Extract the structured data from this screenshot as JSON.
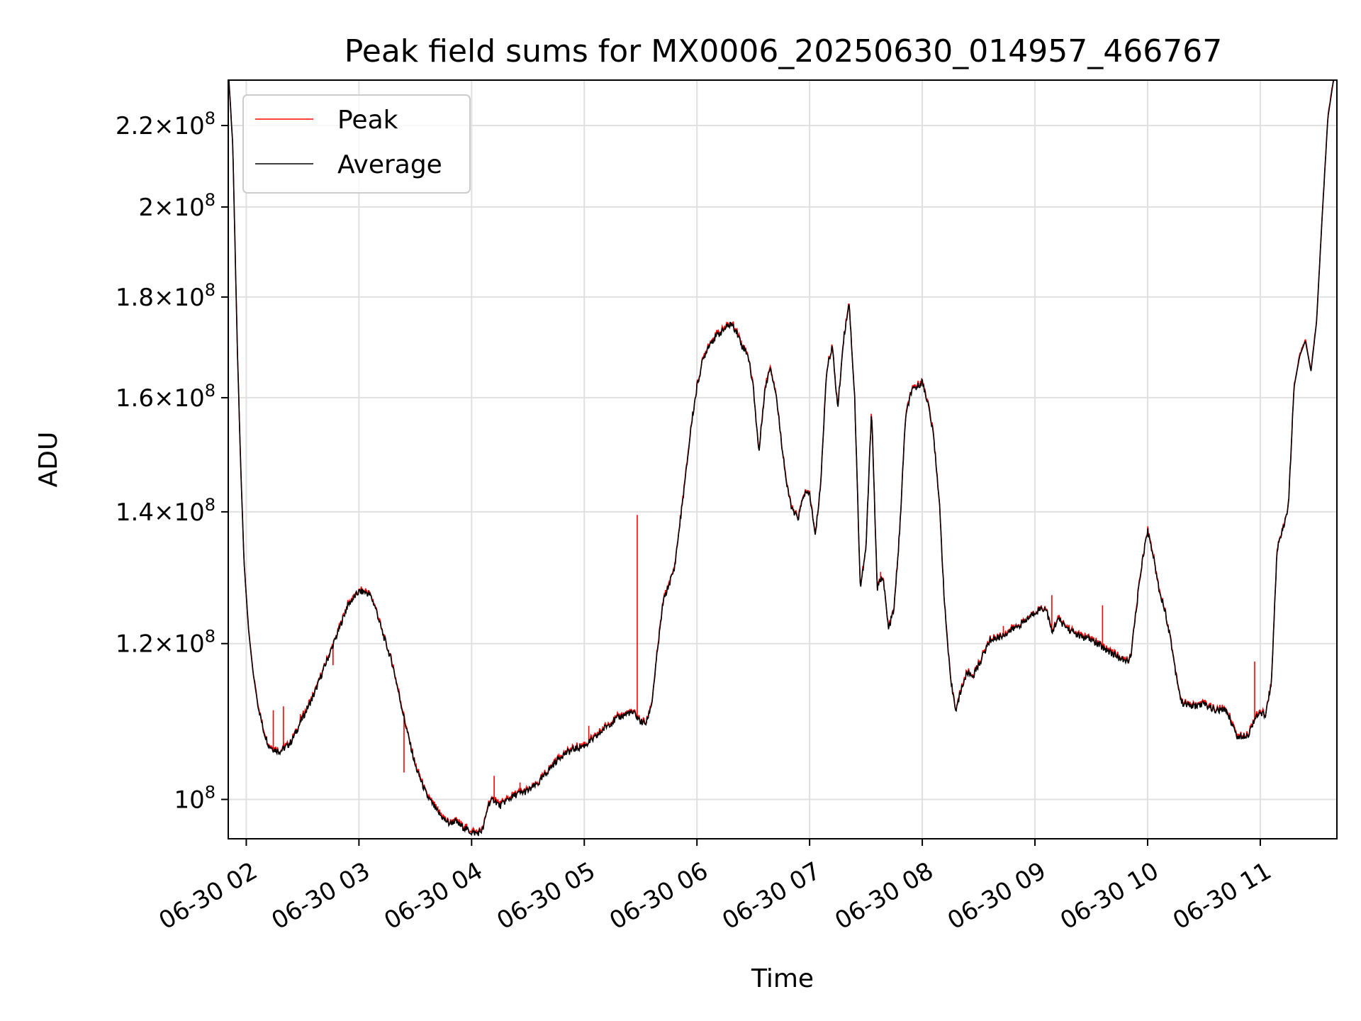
{
  "chart_data": {
    "type": "line",
    "title": "Peak field sums for MX0006_20250630_014957_466767",
    "xlabel": "Time",
    "ylabel": "ADU",
    "x_axis": "time (hours, 2025-06-30)",
    "xlim": [
      1.84,
      11.68
    ],
    "ylim": [
      95500000,
      232000000
    ],
    "yscale": "log",
    "grid": true,
    "legend_position": "upper-left",
    "x_ticks": [
      {
        "value": 2,
        "label": "06-30 02"
      },
      {
        "value": 3,
        "label": "06-30 03"
      },
      {
        "value": 4,
        "label": "06-30 04"
      },
      {
        "value": 5,
        "label": "06-30 05"
      },
      {
        "value": 6,
        "label": "06-30 06"
      },
      {
        "value": 7,
        "label": "06-30 07"
      },
      {
        "value": 8,
        "label": "06-30 08"
      },
      {
        "value": 9,
        "label": "06-30 09"
      },
      {
        "value": 10,
        "label": "06-30 10"
      },
      {
        "value": 11,
        "label": "06-30 11"
      }
    ],
    "y_ticks": [
      {
        "value": 100000000,
        "mantissa": "",
        "exp": "8"
      },
      {
        "value": 120000000,
        "mantissa": "1.2",
        "exp": "8"
      },
      {
        "value": 140000000,
        "mantissa": "1.4",
        "exp": "8"
      },
      {
        "value": 160000000,
        "mantissa": "1.6",
        "exp": "8"
      },
      {
        "value": 180000000,
        "mantissa": "1.8",
        "exp": "8"
      },
      {
        "value": 200000000,
        "mantissa": "2",
        "exp": "8"
      },
      {
        "value": 220000000,
        "mantissa": "2.2",
        "exp": "8"
      }
    ],
    "series": [
      {
        "name": "Peak",
        "color": "#ff0000",
        "spikes": [
          {
            "x": 2.24,
            "y": 111000000
          },
          {
            "x": 2.33,
            "y": 111500000
          },
          {
            "x": 2.48,
            "y": 110500000
          },
          {
            "x": 2.77,
            "y": 117000000
          },
          {
            "x": 3.4,
            "y": 103200000
          },
          {
            "x": 3.7,
            "y": 99200000
          },
          {
            "x": 4.2,
            "y": 102800000
          },
          {
            "x": 4.43,
            "y": 102000000
          },
          {
            "x": 5.04,
            "y": 109000000
          },
          {
            "x": 5.47,
            "y": 139500000
          },
          {
            "x": 7.63,
            "y": 130500000
          },
          {
            "x": 8.72,
            "y": 122500000
          },
          {
            "x": 9.15,
            "y": 127000000
          },
          {
            "x": 9.6,
            "y": 125500000
          },
          {
            "x": 10.95,
            "y": 117500000
          }
        ]
      },
      {
        "name": "Average",
        "color": "#000000",
        "x": [
          1.84,
          1.88,
          1.92,
          1.95,
          1.98,
          2.02,
          2.06,
          2.1,
          2.15,
          2.2,
          2.25,
          2.3,
          2.35,
          2.4,
          2.5,
          2.6,
          2.7,
          2.8,
          2.9,
          3.0,
          3.05,
          3.1,
          3.15,
          3.2,
          3.3,
          3.4,
          3.5,
          3.6,
          3.7,
          3.75,
          3.8,
          3.85,
          3.9,
          4.0,
          4.05,
          4.1,
          4.15,
          4.2,
          4.25,
          4.3,
          4.4,
          4.5,
          4.6,
          4.7,
          4.8,
          4.9,
          5.0,
          5.1,
          5.2,
          5.3,
          5.4,
          5.45,
          5.5,
          5.55,
          5.6,
          5.65,
          5.7,
          5.8,
          5.9,
          5.95,
          6.0,
          6.05,
          6.1,
          6.15,
          6.2,
          6.25,
          6.3,
          6.35,
          6.4,
          6.45,
          6.5,
          6.55,
          6.6,
          6.65,
          6.7,
          6.75,
          6.8,
          6.85,
          6.9,
          6.95,
          7.0,
          7.05,
          7.1,
          7.15,
          7.2,
          7.25,
          7.3,
          7.35,
          7.4,
          7.45,
          7.5,
          7.55,
          7.6,
          7.65,
          7.7,
          7.75,
          7.8,
          7.85,
          7.9,
          7.95,
          8.0,
          8.05,
          8.1,
          8.15,
          8.2,
          8.25,
          8.3,
          8.35,
          8.4,
          8.45,
          8.5,
          8.6,
          8.7,
          8.8,
          8.9,
          9.0,
          9.05,
          9.1,
          9.15,
          9.2,
          9.3,
          9.4,
          9.5,
          9.6,
          9.7,
          9.8,
          9.85,
          9.9,
          9.95,
          10.0,
          10.05,
          10.1,
          10.15,
          10.2,
          10.25,
          10.3,
          10.4,
          10.5,
          10.6,
          10.7,
          10.8,
          10.9,
          10.95,
          11.0,
          11.05,
          11.1,
          11.15,
          11.2,
          11.25,
          11.3,
          11.35,
          11.4,
          11.45,
          11.5,
          11.55,
          11.6,
          11.65
        ],
        "values": [
          235000000,
          215000000,
          170000000,
          148000000,
          132000000,
          122000000,
          116000000,
          112000000,
          108500000,
          106500000,
          106000000,
          105800000,
          106300000,
          107000000,
          110000000,
          113000000,
          117000000,
          121000000,
          125500000,
          127500000,
          127500000,
          127000000,
          125000000,
          122000000,
          117000000,
          110000000,
          104000000,
          100500000,
          98500000,
          97800000,
          97200000,
          97500000,
          97000000,
          96200000,
          96100000,
          96500000,
          99500000,
          100000000,
          99200000,
          99800000,
          100600000,
          101000000,
          102000000,
          103800000,
          105300000,
          106000000,
          106500000,
          107500000,
          109000000,
          110000000,
          110700000,
          110500000,
          109500000,
          109300000,
          112000000,
          119000000,
          126000000,
          131000000,
          146000000,
          155000000,
          162000000,
          167000000,
          170000000,
          171500000,
          172500000,
          173500000,
          174500000,
          173000000,
          170000000,
          168500000,
          162000000,
          150000000,
          161000000,
          166000000,
          161000000,
          152000000,
          144000000,
          140000000,
          139000000,
          143000000,
          143000000,
          136000000,
          145000000,
          165000000,
          170000000,
          158000000,
          171000000,
          179000000,
          160000000,
          128000000,
          134000000,
          158000000,
          128000000,
          130000000,
          122000000,
          125000000,
          137000000,
          156000000,
          161000000,
          162000000,
          163000000,
          159000000,
          153000000,
          142000000,
          125000000,
          115000000,
          111000000,
          114000000,
          116000000,
          115500000,
          117000000,
          120500000,
          121000000,
          122000000,
          123000000,
          124500000,
          125000000,
          125000000,
          121500000,
          123500000,
          122000000,
          121000000,
          120500000,
          119500000,
          118500000,
          117500000,
          118000000,
          125000000,
          132000000,
          137000000,
          133000000,
          128000000,
          125000000,
          121000000,
          116000000,
          112000000,
          111500000,
          111800000,
          111000000,
          111000000,
          107500000,
          108000000,
          110000000,
          110500000,
          110500000,
          115000000,
          134000000,
          137000000,
          141000000,
          162000000,
          168000000,
          171000000,
          165000000,
          175000000,
          198000000,
          222000000,
          232000000
        ]
      }
    ]
  }
}
